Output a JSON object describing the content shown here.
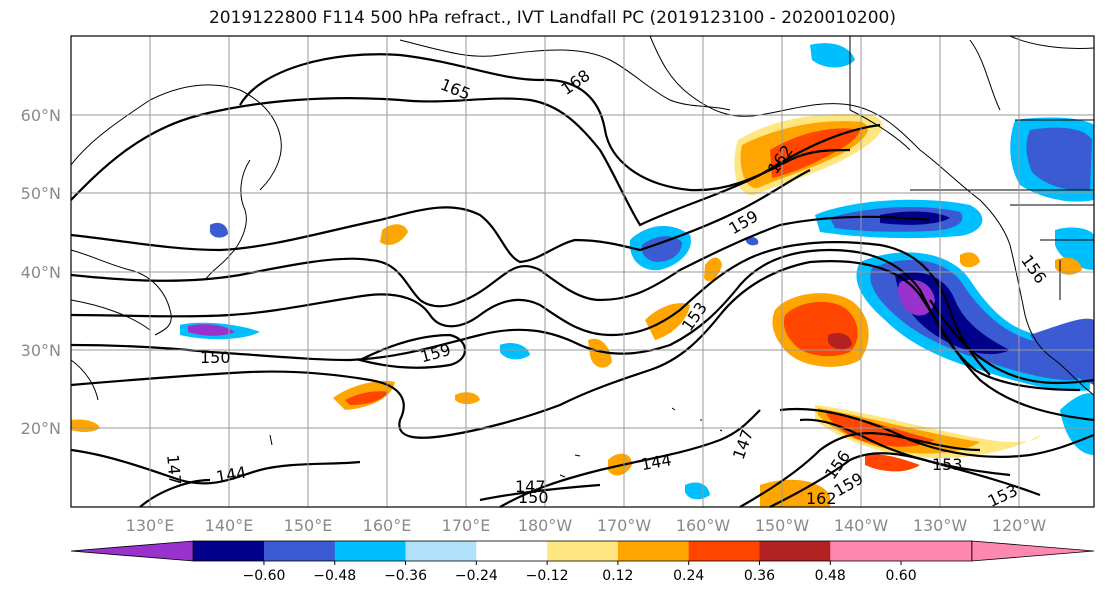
{
  "title": "2019122800 F114 500 hPa refract., IVT Landfall PC (2019123100 - 2020010200)",
  "lat_labels": [
    "60°N",
    "50°N",
    "40°N",
    "30°N",
    "20°N"
  ],
  "lon_labels": [
    "130°E",
    "140°E",
    "150°E",
    "160°E",
    "170°E",
    "180°W",
    "170°W",
    "160°W",
    "150°W",
    "140°W",
    "130°W",
    "120°W"
  ],
  "contour_labels": [
    "165",
    "168",
    "162",
    "159",
    "153",
    "156",
    "150",
    "159",
    "147",
    "144",
    "147",
    "144",
    "147",
    "150",
    "156",
    "159",
    "162",
    "153",
    "153"
  ],
  "colorbar": {
    "ticks": [
      "−0.60",
      "−0.48",
      "−0.36",
      "−0.24",
      "−0.12",
      "0.12",
      "0.24",
      "0.36",
      "0.48",
      "0.60"
    ],
    "colors": [
      "#9932cc",
      "#00008b",
      "#3a5bd1",
      "#00bfff",
      "#b0e0fa",
      "#ffffff",
      "#ffe680",
      "#ffa500",
      "#ff4500",
      "#b22222",
      "#ff88b0",
      "#ff88b0"
    ]
  }
}
